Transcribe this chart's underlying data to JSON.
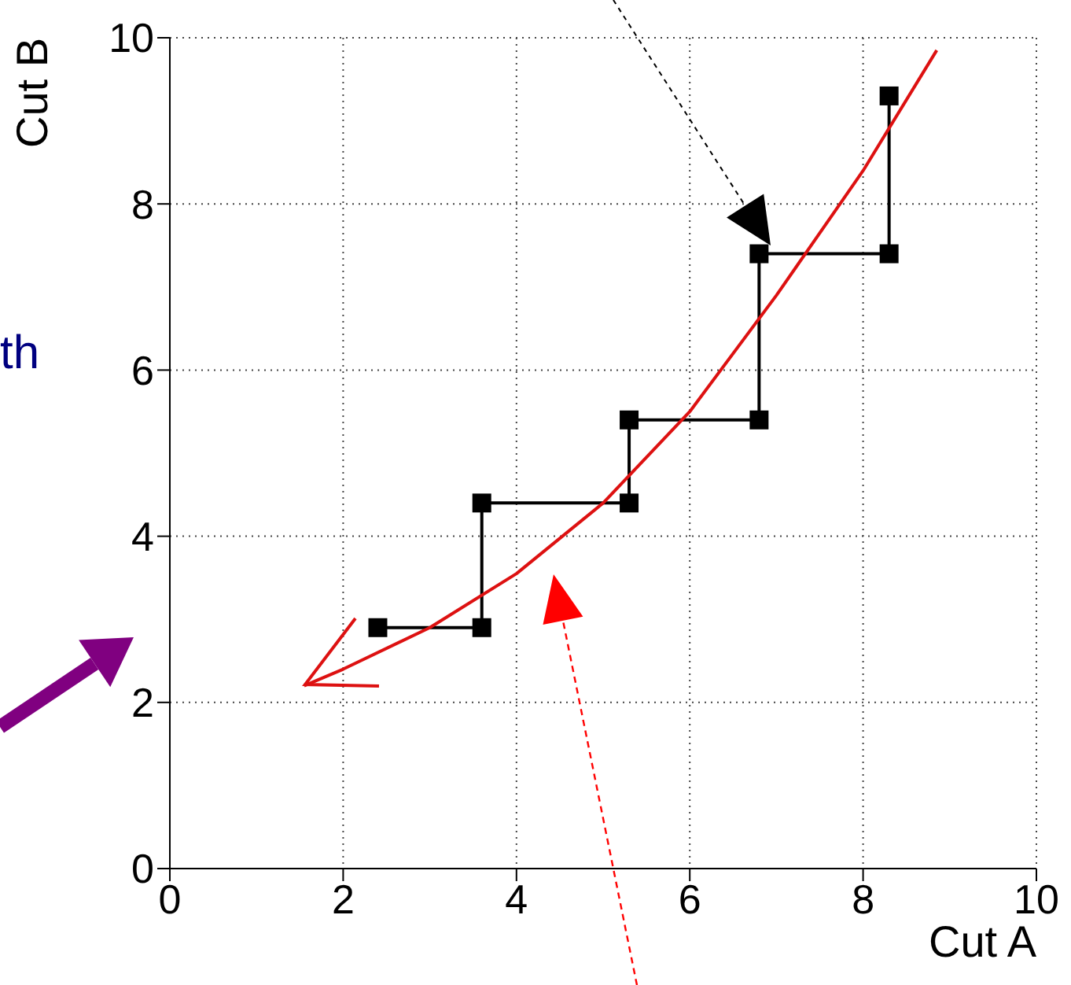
{
  "chart_data": {
    "type": "line",
    "xlabel": "Cut A",
    "ylabel": "Cut B",
    "xlim": [
      0,
      10
    ],
    "ylim": [
      0,
      10
    ],
    "xticks": [
      0,
      2,
      4,
      6,
      8,
      10
    ],
    "yticks": [
      0,
      2,
      4,
      6,
      8,
      10
    ],
    "grid": true,
    "annotations": [
      "th"
    ],
    "series": [
      {
        "color": "#000000",
        "marker": "square",
        "x": [
          2.4,
          3.6,
          3.6,
          5.3,
          5.3,
          6.8,
          6.8,
          8.3,
          8.3
        ],
        "values": [
          2.9,
          2.9,
          4.4,
          4.4,
          5.4,
          5.4,
          7.4,
          7.4,
          9.3
        ]
      },
      {
        "color": "#dd1111",
        "marker": "none",
        "x": [
          1.55,
          2,
          3,
          4,
          5,
          6,
          7,
          8,
          8.85
        ],
        "values": [
          2.2,
          2.4,
          2.9,
          3.55,
          4.4,
          5.5,
          6.9,
          8.4,
          9.85
        ]
      }
    ]
  }
}
